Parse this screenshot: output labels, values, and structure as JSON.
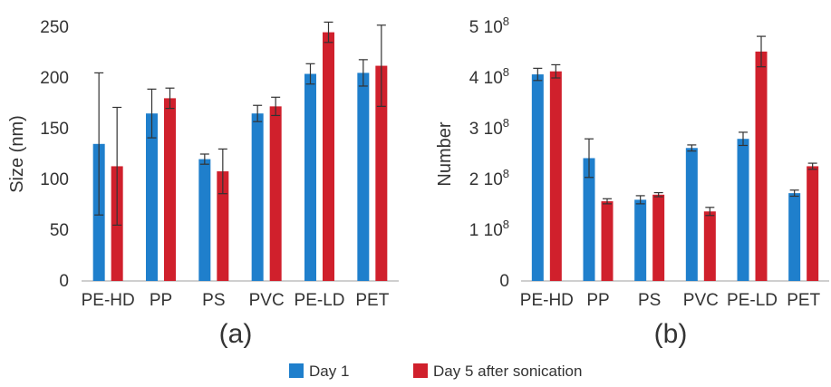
{
  "colors": {
    "day1": "#1f7fcc",
    "day5": "#d0202c",
    "axis": "#bfbfbf",
    "error_bar": "#333333"
  },
  "legend": {
    "items": [
      {
        "label": "Day 1",
        "color": "#1f7fcc"
      },
      {
        "label": "Day 5 after sonication",
        "color": "#d0202c"
      }
    ]
  },
  "chart_data": [
    {
      "type": "bar",
      "panel_label": "(a)",
      "ylabel": "Size (nm)",
      "xlabel": "",
      "ylim": [
        0,
        250
      ],
      "yticks": [
        0,
        50,
        100,
        150,
        200,
        250
      ],
      "ytick_labels": [
        "0",
        "50",
        "100",
        "150",
        "200",
        "250"
      ],
      "grid": false,
      "categories": [
        "PE-HD",
        "PP",
        "PS",
        "PVC",
        "PE-LD",
        "PET"
      ],
      "series": [
        {
          "name": "Day 1",
          "values": [
            135,
            165,
            120,
            165,
            204,
            205
          ],
          "errors": [
            70,
            24,
            5,
            8,
            10,
            13
          ]
        },
        {
          "name": "Day 5 after sonication",
          "values": [
            113,
            180,
            108,
            172,
            245,
            212
          ],
          "errors": [
            58,
            10,
            22,
            9,
            10,
            40
          ]
        }
      ]
    },
    {
      "type": "bar",
      "panel_label": "(b)",
      "ylabel": "Number",
      "xlabel": "",
      "ylim": [
        0,
        500000000
      ],
      "yticks": [
        0,
        100000000,
        200000000,
        300000000,
        400000000,
        500000000
      ],
      "ytick_labels": [
        {
          "mant": "0",
          "exp": ""
        },
        {
          "mant": "1 10",
          "exp": "8"
        },
        {
          "mant": "2 10",
          "exp": "8"
        },
        {
          "mant": "3 10",
          "exp": "8"
        },
        {
          "mant": "4 10",
          "exp": "8"
        },
        {
          "mant": "5 10",
          "exp": "8"
        }
      ],
      "grid": false,
      "categories": [
        "PE-HD",
        "PP",
        "PS",
        "PVC",
        "PE-LD",
        "PET"
      ],
      "series": [
        {
          "name": "Day 1",
          "values": [
            407000000,
            242000000,
            160000000,
            262000000,
            280000000,
            173000000
          ],
          "errors": [
            12000000,
            38000000,
            8000000,
            6000000,
            13000000,
            6000000
          ]
        },
        {
          "name": "Day 5 after sonication",
          "values": [
            413000000,
            157000000,
            170000000,
            137000000,
            452000000,
            226000000
          ],
          "errors": [
            13000000,
            5000000,
            4000000,
            8000000,
            30000000,
            6000000
          ]
        }
      ]
    }
  ]
}
